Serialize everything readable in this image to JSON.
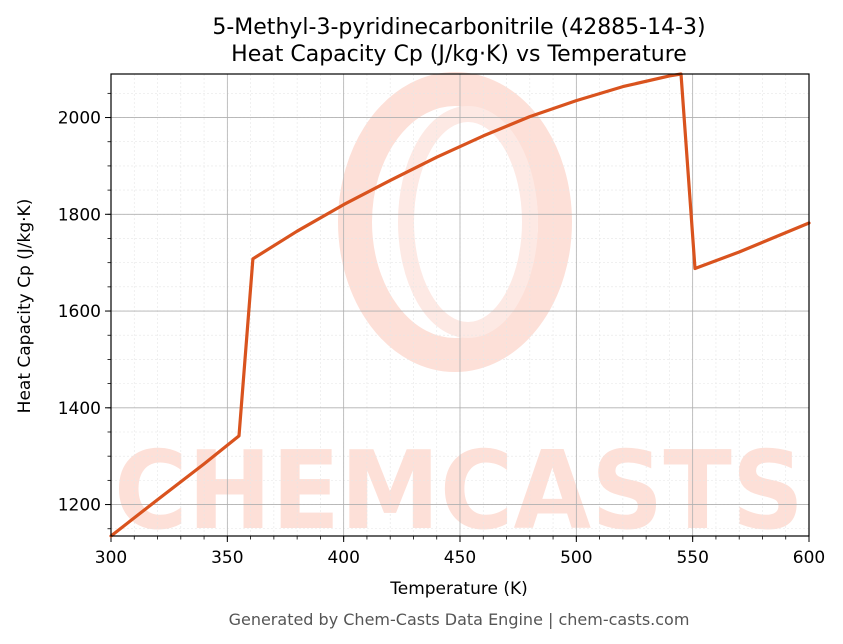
{
  "chart_data": {
    "type": "line",
    "title": "5-Methyl-3-pyridinecarbonitrile (42885-14-3)",
    "subtitle": "Heat Capacity Cp (J/kg·K) vs Temperature",
    "xlabel": "Temperature (K)",
    "ylabel": "Heat Capacity Cp (J/kg·K)",
    "xlim": [
      300,
      600
    ],
    "ylim": [
      1135,
      2090
    ],
    "xticks": [
      300,
      350,
      400,
      450,
      500,
      550,
      600
    ],
    "yticks": [
      1200,
      1400,
      1600,
      1800,
      2000
    ],
    "grid": true,
    "legend": "none",
    "line_color": "#d9531e",
    "series": [
      {
        "x": [
          300,
          320,
          340,
          355,
          361,
          380,
          400,
          420,
          440,
          460,
          480,
          500,
          520,
          540,
          545,
          551,
          570,
          600
        ],
        "y": [
          1135,
          1210,
          1284,
          1342,
          1708,
          1765,
          1820,
          1870,
          1918,
          1962,
          2002,
          2035,
          2064,
          2086,
          2090,
          1688,
          1722,
          1782
        ]
      }
    ]
  },
  "watermark": "CHEMCASTS",
  "footer": "Generated by Chem-Casts Data Engine | chem-casts.com"
}
